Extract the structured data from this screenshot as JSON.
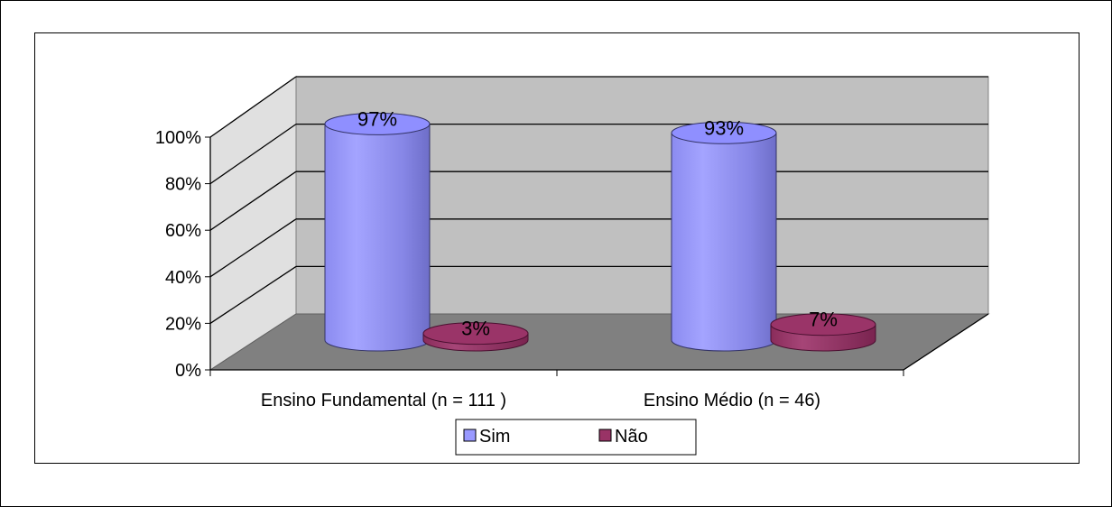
{
  "chart_data": {
    "type": "bar",
    "style": "3d-cylinder",
    "categories": [
      "Ensino Fundamental (n = 111 )",
      "Ensino Médio (n = 46)"
    ],
    "series": [
      {
        "name": "Sim",
        "values": [
          97,
          93
        ],
        "labels": [
          "97%",
          "93%"
        ],
        "color": "#9999FF"
      },
      {
        "name": "Não",
        "values": [
          3,
          7
        ],
        "labels": [
          "3%",
          "7%"
        ],
        "color": "#993366"
      }
    ],
    "y_ticks": [
      "0%",
      "20%",
      "40%",
      "60%",
      "80%",
      "100%"
    ],
    "ylim": [
      0,
      100
    ],
    "grid": true,
    "legend_position": "bottom",
    "colors": {
      "wall": "#C0C0C0",
      "floor": "#808080",
      "side_wall": "#E0E0E0"
    }
  }
}
